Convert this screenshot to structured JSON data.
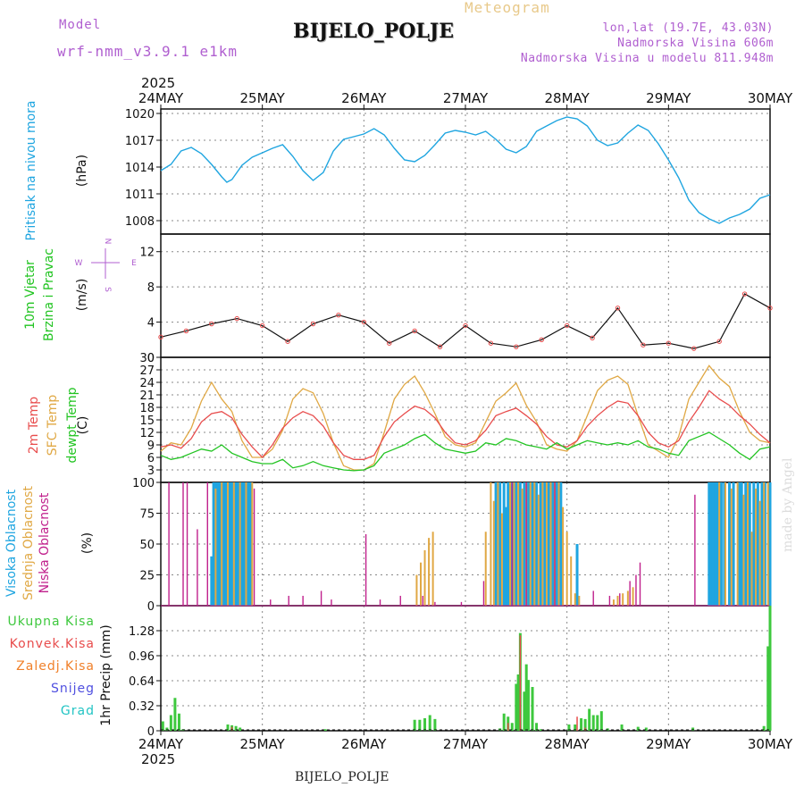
{
  "header": {
    "model_label": "Model",
    "model_name": "wrf-nmm_v3.9.1  e1km",
    "title": "BIJELO_POLJE",
    "meteogram_label": "Meteogram",
    "lonlat": "lon,lat (19.7E, 43.03N)",
    "elevation": "Nadmorska Visina 606m",
    "model_elevation": "Nadmorska Visina u modelu 811.948m"
  },
  "footer": {
    "station": "BIJELO_POLJE"
  },
  "watermark": "made by Angel",
  "colors": {
    "pressure": "#1fa5e0",
    "wind_label": "#22c422",
    "temp2m": "#e84c4c",
    "sfc_temp": "#e0a844",
    "dewpoint": "#22c422",
    "high_cloud": "#1fa5e0",
    "mid_cloud": "#e0a844",
    "low_cloud": "#c0208c",
    "total_precip": "#3ec83e",
    "conv_precip": "#e84c4c",
    "freezing_precip": "#f0802a",
    "snow": "#5050e0",
    "hail": "#22c4c4",
    "axis": "#111111",
    "grid": "#888888"
  },
  "time_axis": {
    "year": "2025",
    "labels": [
      "24MAY",
      "25MAY",
      "26MAY",
      "27MAY",
      "28MAY",
      "29MAY",
      "30MAY"
    ]
  },
  "panel_labels": {
    "pressure": [
      "Pritisak na nivou mora",
      "(hPa)"
    ],
    "wind": [
      "10m Vjetar",
      "Brzina i Pravac",
      "(m/s)"
    ],
    "temperature": [
      "2m Temp",
      "SFC Temp",
      "dewpt Temp",
      "(C)"
    ],
    "clouds": [
      "Visoka Oblacnost",
      "Srednja Oblacnost",
      "Niska Oblacnost",
      "(%)"
    ],
    "precip": [
      "1hr Precip (mm)"
    ],
    "precip_types": [
      "Ukupna Kisa",
      "Konvek.Kisa",
      "Zaledj.Kisa",
      "Snijeg",
      "Grad"
    ],
    "compass": {
      "n": "N",
      "e": "E",
      "w": "W",
      "s": "S"
    }
  },
  "chart_data": [
    {
      "type": "line",
      "title": "Pritisak na nivou mora",
      "ylabel": "(hPa)",
      "ylim": [
        1006.5,
        1020.5
      ],
      "yticks": [
        1008,
        1011,
        1014,
        1017,
        1020
      ],
      "x_days": [
        0,
        0.1,
        0.2,
        0.3,
        0.4,
        0.5,
        0.6,
        0.65,
        0.7,
        0.8,
        0.9,
        1.0,
        1.1,
        1.2,
        1.3,
        1.4,
        1.5,
        1.6,
        1.7,
        1.8,
        1.9,
        2.0,
        2.1,
        2.2,
        2.3,
        2.4,
        2.5,
        2.6,
        2.7,
        2.8,
        2.9,
        3.0,
        3.1,
        3.2,
        3.3,
        3.4,
        3.5,
        3.6,
        3.7,
        3.8,
        3.9,
        4.0,
        4.1,
        4.2,
        4.3,
        4.4,
        4.5,
        4.6,
        4.7,
        4.8,
        4.9,
        5.0,
        5.1,
        5.2,
        5.3,
        5.4,
        5.5,
        5.6,
        5.7,
        5.8,
        5.9,
        6.0
      ],
      "series": [
        {
          "values": [
            1013.6,
            1014.3,
            1015.8,
            1016.2,
            1015.5,
            1014.3,
            1012.9,
            1012.3,
            1012.6,
            1014.2,
            1015.1,
            1015.6,
            1016.1,
            1016.5,
            1015.2,
            1013.6,
            1012.5,
            1013.4,
            1015.8,
            1017.1,
            1017.4,
            1017.7,
            1018.3,
            1017.6,
            1016.1,
            1014.8,
            1014.6,
            1015.3,
            1016.5,
            1017.8,
            1018.1,
            1017.9,
            1017.6,
            1018.0,
            1017.1,
            1016.0,
            1015.6,
            1016.3,
            1018.0,
            1018.6,
            1019.2,
            1019.6,
            1019.4,
            1018.6,
            1017.0,
            1016.4,
            1016.7,
            1017.8,
            1018.7,
            1018.1,
            1016.6,
            1014.8,
            1012.8,
            1010.3,
            1008.9,
            1008.2,
            1007.7,
            1008.3,
            1008.7,
            1009.3,
            1010.5,
            1010.9
          ]
        }
      ]
    },
    {
      "type": "line",
      "title": "10m Vjetar Brzina i Pravac",
      "ylabel": "(m/s)",
      "ylim": [
        0,
        14
      ],
      "yticks": [
        0,
        4,
        8,
        12
      ],
      "x_days": [
        0,
        0.25,
        0.5,
        0.75,
        1.0,
        1.25,
        1.5,
        1.75,
        2.0,
        2.25,
        2.5,
        2.75,
        3.0,
        3.25,
        3.5,
        3.75,
        4.0,
        4.25,
        4.5,
        4.75,
        5.0,
        5.25,
        5.5,
        5.75,
        6.0
      ],
      "series": [
        {
          "name": "Brzina",
          "values": [
            2.3,
            3.0,
            3.8,
            4.4,
            3.6,
            1.8,
            3.8,
            4.8,
            4.0,
            1.6,
            3.0,
            1.2,
            3.6,
            1.6,
            1.2,
            2.0,
            3.6,
            2.2,
            5.6,
            1.4,
            1.6,
            1.0,
            1.8,
            7.2,
            5.6
          ]
        }
      ]
    },
    {
      "type": "line",
      "title": "2m Temp / SFC Temp / dewpt Temp",
      "ylabel": "(C)",
      "ylim": [
        0,
        30
      ],
      "yticks": [
        3,
        6,
        9,
        12,
        15,
        18,
        21,
        24,
        27,
        30
      ],
      "x_days": [
        0,
        0.1,
        0.2,
        0.3,
        0.4,
        0.5,
        0.6,
        0.7,
        0.8,
        0.9,
        1.0,
        1.1,
        1.2,
        1.3,
        1.4,
        1.5,
        1.6,
        1.7,
        1.8,
        1.9,
        2.0,
        2.1,
        2.2,
        2.3,
        2.4,
        2.5,
        2.6,
        2.7,
        2.8,
        2.9,
        3.0,
        3.1,
        3.2,
        3.3,
        3.4,
        3.5,
        3.6,
        3.7,
        3.8,
        3.9,
        4.0,
        4.1,
        4.2,
        4.3,
        4.4,
        4.5,
        4.6,
        4.7,
        4.8,
        4.9,
        5.0,
        5.1,
        5.2,
        5.3,
        5.4,
        5.5,
        5.6,
        5.7,
        5.8,
        5.9,
        6.0
      ],
      "series": [
        {
          "name": "2m Temp",
          "values": [
            8.5,
            9.0,
            8.2,
            10.5,
            14.5,
            16.5,
            17.0,
            15.5,
            11.5,
            8.5,
            6.0,
            9.0,
            13.0,
            15.5,
            17.0,
            16.0,
            13.5,
            9.5,
            6.5,
            5.5,
            5.5,
            6.5,
            11.0,
            14.5,
            16.5,
            18.3,
            17.5,
            15.5,
            12.0,
            9.5,
            9.0,
            10.0,
            12.5,
            16.0,
            17.0,
            17.8,
            16.0,
            14.0,
            11.0,
            9.0,
            8.5,
            10.0,
            13.5,
            16.0,
            18.0,
            19.5,
            19.0,
            16.0,
            12.0,
            9.5,
            8.5,
            10.0,
            14.5,
            18.0,
            22.0,
            20.0,
            18.5,
            16.0,
            14.0,
            11.5,
            9.5
          ]
        },
        {
          "name": "SFC Temp",
          "values": [
            7.5,
            9.5,
            9.0,
            13.0,
            19.5,
            24.0,
            20.0,
            17.0,
            10.0,
            6.0,
            6.0,
            8.0,
            12.5,
            20.0,
            22.5,
            21.5,
            16.5,
            9.5,
            4.0,
            3.0,
            3.0,
            4.5,
            12.0,
            20.0,
            23.5,
            25.5,
            21.5,
            16.5,
            11.0,
            9.0,
            8.5,
            9.5,
            14.5,
            19.5,
            21.5,
            23.8,
            18.5,
            14.5,
            9.0,
            8.0,
            7.5,
            10.0,
            16.0,
            22.0,
            24.5,
            25.5,
            23.5,
            16.0,
            9.0,
            7.5,
            6.0,
            11.0,
            20.0,
            24.0,
            28.0,
            25.0,
            23.0,
            17.0,
            12.0,
            10.0,
            9.5
          ]
        },
        {
          "name": "dewpt Temp",
          "values": [
            6.5,
            5.5,
            6.0,
            7.0,
            8.0,
            7.5,
            9.0,
            7.0,
            6.0,
            5.0,
            4.5,
            4.5,
            5.5,
            3.5,
            4.0,
            5.0,
            4.0,
            3.5,
            3.0,
            2.8,
            3.0,
            4.0,
            7.0,
            8.0,
            9.0,
            10.5,
            11.5,
            9.5,
            8.0,
            7.5,
            7.0,
            7.5,
            9.5,
            9.0,
            10.5,
            10.0,
            9.0,
            8.5,
            8.0,
            9.5,
            8.0,
            9.0,
            10.0,
            9.5,
            9.0,
            9.5,
            9.0,
            10.0,
            8.5,
            8.0,
            7.0,
            6.5,
            10.0,
            11.0,
            12.0,
            10.5,
            9.0,
            7.0,
            5.5,
            8.0,
            8.5
          ]
        }
      ]
    },
    {
      "type": "bar",
      "title": "Visoka / Srednja / Niska Oblacnost",
      "ylabel": "(%)",
      "ylim": [
        0,
        100
      ],
      "yticks": [
        0,
        25,
        50,
        75,
        100
      ],
      "series": [
        {
          "name": "Visoka Oblacnost",
          "x_days": [
            0.5,
            0.52,
            0.54,
            0.56,
            0.58,
            0.6,
            0.62,
            0.64,
            0.66,
            0.68,
            0.7,
            0.72,
            0.74,
            0.76,
            0.78,
            0.8,
            0.82,
            0.84,
            0.86,
            0.88,
            3.3,
            3.34,
            3.38,
            3.4,
            3.42,
            3.46,
            3.5,
            3.54,
            3.58,
            3.62,
            3.66,
            3.7,
            3.74,
            3.78,
            3.82,
            3.86,
            3.9,
            3.94,
            4.1,
            5.4,
            5.42,
            5.44,
            5.46,
            5.48,
            5.5,
            5.52,
            5.55,
            5.6,
            5.64,
            5.7,
            5.72,
            5.76,
            5.8,
            5.84,
            5.88,
            5.92,
            5.95,
            6.0
          ],
          "values": [
            40,
            100,
            100,
            100,
            100,
            100,
            100,
            100,
            100,
            100,
            100,
            100,
            100,
            100,
            100,
            100,
            100,
            100,
            100,
            100,
            100,
            100,
            100,
            80,
            100,
            100,
            100,
            100,
            100,
            100,
            100,
            100,
            100,
            100,
            100,
            100,
            100,
            100,
            50,
            100,
            100,
            100,
            100,
            100,
            100,
            100,
            100,
            100,
            100,
            100,
            100,
            100,
            100,
            100,
            100,
            100,
            100,
            100
          ]
        },
        {
          "name": "Srednja Oblacnost",
          "x_days": [
            0.54,
            0.6,
            0.66,
            0.72,
            0.78,
            0.84,
            0.9,
            2.52,
            2.56,
            2.6,
            2.64,
            2.68,
            3.2,
            3.25,
            3.28,
            3.32,
            3.36,
            3.44,
            3.48,
            3.52,
            3.56,
            3.6,
            3.64,
            3.68,
            3.72,
            3.76,
            3.8,
            3.84,
            3.88,
            3.92,
            3.96,
            4.0,
            4.04,
            4.08,
            4.12,
            4.46,
            4.5,
            4.55,
            4.6,
            4.65,
            5.5,
            5.56,
            5.62,
            5.68,
            5.74,
            5.78,
            5.82,
            5.86,
            5.9,
            5.94,
            5.98
          ],
          "values": [
            95,
            100,
            100,
            100,
            100,
            100,
            100,
            25,
            35,
            45,
            55,
            60,
            60,
            100,
            85,
            100,
            75,
            100,
            100,
            100,
            95,
            100,
            100,
            100,
            90,
            100,
            100,
            100,
            100,
            100,
            80,
            60,
            40,
            10,
            8,
            5,
            8,
            10,
            12,
            15,
            100,
            100,
            95,
            100,
            90,
            100,
            60,
            95,
            85,
            100,
            100
          ]
        },
        {
          "name": "Niska Oblacnost",
          "x_days": [
            0.08,
            0.22,
            0.26,
            0.36,
            0.46,
            0.92,
            1.08,
            1.26,
            1.4,
            1.58,
            1.68,
            2.02,
            2.16,
            2.36,
            2.58,
            2.7,
            2.96,
            3.18,
            3.46,
            3.6,
            3.88,
            4.26,
            4.42,
            4.52,
            4.62,
            4.68,
            4.72,
            5.26
          ],
          "values": [
            100,
            100,
            100,
            62,
            100,
            95,
            5,
            8,
            8,
            12,
            5,
            58,
            5,
            8,
            8,
            3,
            3,
            20,
            100,
            100,
            100,
            12,
            8,
            10,
            20,
            25,
            35,
            90
          ]
        }
      ]
    },
    {
      "type": "bar",
      "title": "1hr Precip",
      "ylabel": "1hr Precip (mm)",
      "ylim": [
        0,
        1.6
      ],
      "yticks": [
        0,
        0.32,
        0.64,
        0.96,
        1.28
      ],
      "series": [
        {
          "name": "Ukupna Kisa",
          "x_days": [
            0.02,
            0.06,
            0.1,
            0.14,
            0.18,
            0.22,
            0.66,
            0.7,
            0.74,
            0.78,
            1.62,
            2.5,
            2.55,
            2.6,
            2.65,
            2.7,
            3.34,
            3.38,
            3.42,
            3.46,
            3.5,
            3.52,
            3.54,
            3.58,
            3.6,
            3.62,
            3.66,
            3.7,
            3.74,
            4.02,
            4.08,
            4.14,
            4.18,
            4.22,
            4.26,
            4.3,
            4.34,
            4.4,
            4.54,
            4.7,
            4.78,
            5.24,
            5.94,
            5.98,
            6.0
          ],
          "values": [
            0.12,
            0.04,
            0.2,
            0.42,
            0.22,
            0.02,
            0.08,
            0.07,
            0.06,
            0.04,
            0.02,
            0.14,
            0.14,
            0.16,
            0.2,
            0.15,
            0.03,
            0.22,
            0.18,
            0.1,
            0.6,
            0.72,
            1.25,
            0.5,
            0.85,
            0.65,
            0.56,
            0.1,
            0.02,
            0.08,
            0.08,
            0.16,
            0.15,
            0.28,
            0.2,
            0.2,
            0.25,
            0.03,
            0.08,
            0.05,
            0.04,
            0.04,
            0.06,
            1.08,
            1.6
          ]
        },
        {
          "name": "Konvek.Kisa",
          "x_days": [
            0.7,
            3.42,
            3.54,
            4.1,
            4.18
          ],
          "values": [
            0.05,
            0.1,
            1.22,
            0.18,
            0.04
          ]
        }
      ]
    }
  ]
}
